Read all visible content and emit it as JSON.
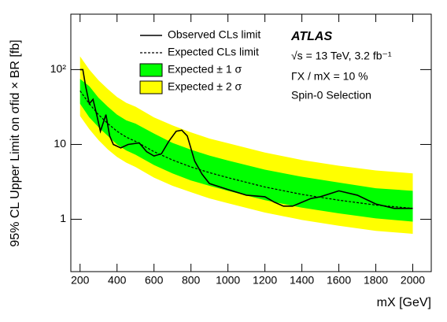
{
  "chart_data": {
    "type": "line",
    "ylabel": "95% CL Upper Limit on σfid × BR [fb]",
    "xlabel": "mX [GeV]",
    "annotations": [
      "ATLAS",
      "√s = 13 TeV, 3.2 fb⁻¹",
      "ΓX / mX = 10 %",
      "Spin-0 Selection"
    ],
    "xlim": [
      150,
      2100
    ],
    "xticks": [
      200,
      400,
      600,
      800,
      1000,
      1200,
      1400,
      1600,
      1800,
      2000
    ],
    "ylim": [
      0.2,
      550
    ],
    "log_y": true,
    "yticks": [
      1,
      10,
      {
        "value": 100,
        "label": "10²"
      }
    ],
    "bands": [
      {
        "name": "Expected ± 2 σ",
        "color": "#ffff00",
        "x": [
          200,
          250,
          300,
          350,
          400,
          450,
          500,
          600,
          700,
          800,
          900,
          1000,
          1200,
          1400,
          1600,
          1800,
          2000
        ],
        "lower": [
          24,
          16,
          11.4,
          8.6,
          6.8,
          5.7,
          5,
          3.6,
          2.8,
          2.3,
          1.9,
          1.64,
          1.23,
          0.98,
          0.82,
          0.7,
          0.64
        ],
        "upper": [
          150,
          100,
          72,
          55,
          43,
          36,
          32,
          23,
          18,
          14.5,
          12,
          10.4,
          7.8,
          6.2,
          5.2,
          4.5,
          4.1
        ]
      },
      {
        "name": "Expected ± 1 σ",
        "color": "#00ff00",
        "x": [
          200,
          250,
          300,
          350,
          400,
          450,
          500,
          600,
          700,
          800,
          900,
          1000,
          1200,
          1400,
          1600,
          1800,
          2000
        ],
        "lower": [
          35,
          23,
          17,
          13,
          10,
          8.3,
          7.3,
          5.3,
          4.1,
          3.3,
          2.8,
          2.4,
          1.8,
          1.43,
          1.2,
          1.03,
          0.93
        ],
        "upper": [
          75,
          60,
          42,
          32,
          25,
          21,
          19,
          14,
          10.5,
          8.5,
          7.1,
          6.1,
          4.6,
          3.7,
          3.1,
          2.6,
          2.4
        ]
      }
    ],
    "series": [
      {
        "name": "Observed CLs limit",
        "color": "#000000",
        "dashed": false,
        "x": [
          200,
          215,
          230,
          250,
          270,
          290,
          310,
          340,
          360,
          380,
          420,
          460,
          520,
          560,
          600,
          640,
          680,
          720,
          750,
          780,
          820,
          860,
          900,
          1000,
          1100,
          1200,
          1250,
          1300,
          1350,
          1450,
          1500,
          1600,
          1700,
          1800,
          1900,
          2000
        ],
        "values": [
          100,
          100,
          60,
          35,
          40,
          25,
          15,
          25,
          13,
          10,
          9,
          10,
          10.5,
          8,
          7,
          7.5,
          11,
          15,
          15.5,
          13,
          6,
          4,
          3,
          2.5,
          2.1,
          2.0,
          1.7,
          1.5,
          1.5,
          1.9,
          2.0,
          2.4,
          2.1,
          1.6,
          1.4,
          1.4
        ]
      },
      {
        "name": "Expected CLs limit",
        "color": "#000000",
        "dashed": true,
        "x": [
          200,
          250,
          300,
          350,
          400,
          450,
          500,
          600,
          700,
          800,
          900,
          1000,
          1200,
          1400,
          1600,
          1800,
          2000
        ],
        "values": [
          52,
          35,
          25,
          19,
          15,
          12.5,
          11,
          8,
          6.2,
          5,
          4.2,
          3.6,
          2.7,
          2.15,
          1.8,
          1.55,
          1.4
        ]
      }
    ]
  }
}
